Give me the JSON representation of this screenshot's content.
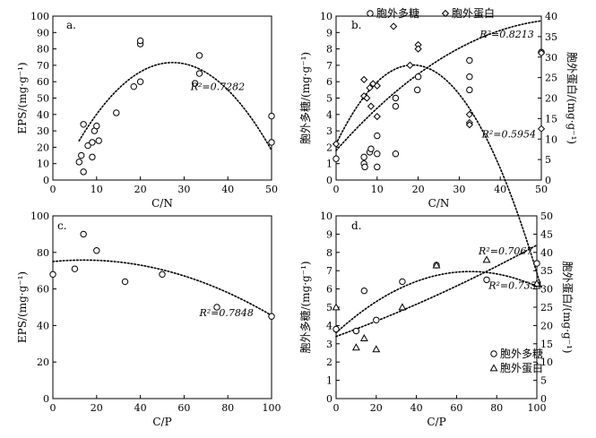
{
  "chart_data": [
    {
      "type": "scatter",
      "panel_label": "a.",
      "xlabel": "C/N",
      "ylabel": "EPS/(mg·g⁻¹)",
      "xlim": [
        0,
        50
      ],
      "ylim": [
        0,
        100
      ],
      "xticks": [
        0,
        10,
        20,
        30,
        40,
        50
      ],
      "yticks": [
        0,
        10,
        20,
        30,
        40,
        50,
        60,
        70,
        80,
        90,
        100
      ],
      "series": [
        {
          "marker": "circle",
          "points": [
            [
              6,
              11
            ],
            [
              6.5,
              15
            ],
            [
              7,
              34
            ],
            [
              7,
              5
            ],
            [
              8,
              21
            ],
            [
              9,
              14
            ],
            [
              9,
              23
            ],
            [
              9.5,
              30
            ],
            [
              10,
              33
            ],
            [
              10.5,
              24
            ],
            [
              14.5,
              41
            ],
            [
              18.5,
              57
            ],
            [
              20,
              60
            ],
            [
              20,
              83
            ],
            [
              20,
              85
            ],
            [
              32.5,
              59
            ],
            [
              33.5,
              65
            ],
            [
              33.5,
              76
            ],
            [
              50,
              23
            ],
            [
              50,
              39
            ]
          ]
        }
      ],
      "fit": {
        "style": "dotted",
        "poly": [
          -6.6,
          5.72,
          -0.1045
        ],
        "xrange": [
          6,
          50
        ]
      },
      "annotations": [
        {
          "text": "R²=0.7282",
          "x": 31.5,
          "y": 55
        }
      ]
    },
    {
      "type": "scatter",
      "panel_label": "b.",
      "xlabel": "C/N",
      "ylabel": "胞外多糖/(mg·g⁻¹)",
      "y2label": "胞外蛋白/(mg·g⁻¹)",
      "xlim": [
        0,
        50
      ],
      "ylim": [
        0,
        10
      ],
      "y2lim": [
        0,
        40
      ],
      "xticks": [
        0,
        10,
        20,
        30,
        40,
        50
      ],
      "yticks": [
        0,
        1,
        2,
        3,
        4,
        5,
        6,
        7,
        8,
        9,
        10
      ],
      "y2ticks": [
        0,
        5,
        10,
        15,
        20,
        25,
        30,
        35,
        40
      ],
      "legend": [
        {
          "name": "胞外多糖",
          "marker": "circle"
        },
        {
          "name": "胞外蛋白",
          "marker": "diamond"
        }
      ],
      "series": [
        {
          "name": "胞外多糖",
          "marker": "circle",
          "axis": "left",
          "points": [
            [
              0,
              1.3
            ],
            [
              6.8,
              1.0
            ],
            [
              6.8,
              1.4
            ],
            [
              7,
              0.8
            ],
            [
              8.2,
              1.7
            ],
            [
              8.5,
              1.9
            ],
            [
              10,
              2.7
            ],
            [
              10,
              0.8
            ],
            [
              10,
              1.6
            ],
            [
              14.5,
              4.5
            ],
            [
              14.5,
              5.0
            ],
            [
              14.5,
              1.6
            ],
            [
              19.8,
              5.5
            ],
            [
              20,
              6.3
            ],
            [
              32.5,
              6.3
            ],
            [
              32.5,
              7.3
            ],
            [
              32.5,
              5.5
            ],
            [
              50,
              7.8
            ]
          ]
        },
        {
          "name": "胞外蛋白",
          "marker": "diamond",
          "axis": "right",
          "points": [
            [
              0,
              8.8
            ],
            [
              6.8,
              24.5
            ],
            [
              6.8,
              20.5
            ],
            [
              7.5,
              20.0
            ],
            [
              8.2,
              22.5
            ],
            [
              8.5,
              18.0
            ],
            [
              9,
              23.5
            ],
            [
              10,
              23.0
            ],
            [
              10,
              15.5
            ],
            [
              14,
              37.5
            ],
            [
              18,
              28.0
            ],
            [
              20,
              33.0
            ],
            [
              20,
              32.0
            ],
            [
              32.5,
              16.0
            ],
            [
              32.5,
              14.0
            ],
            [
              32.5,
              13.5
            ],
            [
              50,
              12.5
            ],
            [
              50,
              31.0
            ]
          ]
        }
      ],
      "fits": [
        {
          "series": "胞外多糖",
          "style": "dotted",
          "poly": [
            1.8,
            0.2832,
            -0.0025
          ],
          "xrange": [
            0,
            50
          ]
        },
        {
          "series": "胞外蛋白",
          "style": "dotted",
          "poly": [
            8.8,
            2.0667,
            -0.0554
          ],
          "xrange": [
            0,
            50
          ]
        }
      ],
      "annotations": [
        {
          "text": "R²=0.8213",
          "x": 35,
          "y": 8.7
        },
        {
          "text": "R²=0.5954",
          "x": 35.5,
          "y": 2.6
        }
      ]
    },
    {
      "type": "scatter",
      "panel_label": "c.",
      "xlabel": "C/P",
      "ylabel": "EPS/(mg·g⁻¹)",
      "xlim": [
        0,
        100
      ],
      "ylim": [
        0,
        100
      ],
      "xticks": [
        0,
        20,
        40,
        60,
        80,
        100
      ],
      "yticks": [
        0,
        20,
        40,
        60,
        80,
        100
      ],
      "series": [
        {
          "marker": "circle",
          "points": [
            [
              0,
              68
            ],
            [
              10,
              71
            ],
            [
              14,
              90
            ],
            [
              20,
              81
            ],
            [
              33,
              64
            ],
            [
              50,
              68
            ],
            [
              75,
              50
            ],
            [
              100,
              45
            ]
          ]
        }
      ],
      "fit": {
        "style": "dotted",
        "poly": [
          75.0,
          0.115,
          -0.0041
        ],
        "xrange": [
          0,
          100
        ]
      },
      "annotations": [
        {
          "text": "R²=0.7848",
          "x": 67,
          "y": 45
        }
      ]
    },
    {
      "type": "scatter",
      "panel_label": "d.",
      "xlabel": "C/P",
      "ylabel": "胞外多糖/(mg·g⁻¹)",
      "y2label": "胞外蛋白/(mg·g⁻¹)",
      "xlim": [
        0,
        100
      ],
      "ylim": [
        0,
        10
      ],
      "y2lim": [
        0,
        50
      ],
      "xticks": [
        0,
        20,
        40,
        60,
        80,
        100
      ],
      "yticks": [
        0,
        1,
        2,
        3,
        4,
        5,
        6,
        7,
        8,
        9,
        10
      ],
      "y2ticks": [
        0,
        5,
        10,
        15,
        20,
        25,
        30,
        35,
        40,
        45,
        50
      ],
      "legend": [
        {
          "name": "胞外多糖",
          "marker": "circle"
        },
        {
          "name": "胞外蛋白",
          "marker": "triangle"
        }
      ],
      "series": [
        {
          "name": "胞外多糖",
          "marker": "circle",
          "axis": "left",
          "points": [
            [
              0,
              3.8
            ],
            [
              10,
              3.7
            ],
            [
              14,
              5.9
            ],
            [
              20,
              4.3
            ],
            [
              33,
              6.4
            ],
            [
              50,
              7.3
            ],
            [
              75,
              6.5
            ],
            [
              100,
              7.4
            ]
          ]
        },
        {
          "name": "胞外蛋白",
          "marker": "triangle",
          "axis": "right",
          "points": [
            [
              0,
              25
            ],
            [
              10,
              14
            ],
            [
              14,
              16.5
            ],
            [
              20,
              13.5
            ],
            [
              33,
              25
            ],
            [
              50,
              36.5
            ],
            [
              75,
              38
            ],
            [
              100,
              31.5
            ]
          ]
        }
      ],
      "fits": [
        {
          "series": "胞外多糖",
          "style": "dotted",
          "poly": [
            3.6,
            0.1003,
            -0.00075
          ],
          "xrange": [
            0,
            100
          ]
        },
        {
          "series": "胞外蛋白",
          "style": "dotted",
          "poly": [
            17.0,
            0.2,
            0.0005
          ],
          "xrange": [
            0,
            100
          ]
        }
      ],
      "annotations": [
        {
          "text": "R²=0.7067",
          "x": 71,
          "y": 7.9
        },
        {
          "text": "R²=0.7351",
          "x": 76,
          "y": 6.0
        }
      ]
    }
  ]
}
